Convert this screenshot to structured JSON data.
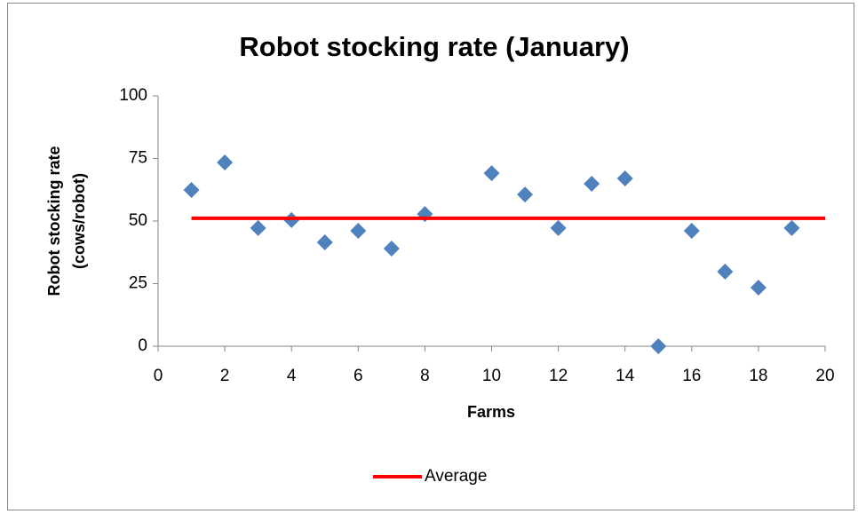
{
  "chart_data": {
    "type": "scatter",
    "title": "Robot stocking rate (January)",
    "x_label": "Farms",
    "y_label": [
      "Robot stocking rate",
      "(cows/robot)"
    ],
    "series": [
      {
        "color": "#4f81bd",
        "x": [
          1,
          2,
          3,
          4,
          5,
          6,
          7,
          8,
          10,
          11,
          12,
          13,
          14,
          15,
          16,
          17,
          18,
          19
        ],
        "values": [
          62.4,
          73.4,
          47.2,
          50.4,
          41.5,
          46.1,
          39.0,
          52.8,
          69.1,
          60.6,
          47.2,
          64.9,
          67.0,
          0,
          46.1,
          29.8,
          23.4,
          47.2
        ]
      },
      {
        "name": "Average",
        "type": "line",
        "color": "#ff0000",
        "x": [
          1,
          20
        ],
        "values": [
          51.1,
          51.1
        ]
      }
    ],
    "xlim": [
      0,
      20
    ],
    "xticks": [
      0,
      2,
      4,
      6,
      8,
      10,
      12,
      14,
      16,
      18,
      20
    ],
    "ylim": [
      0,
      100
    ],
    "yticks": [
      0,
      25,
      50,
      75,
      100
    ],
    "grid": false,
    "legend": "bottom"
  }
}
